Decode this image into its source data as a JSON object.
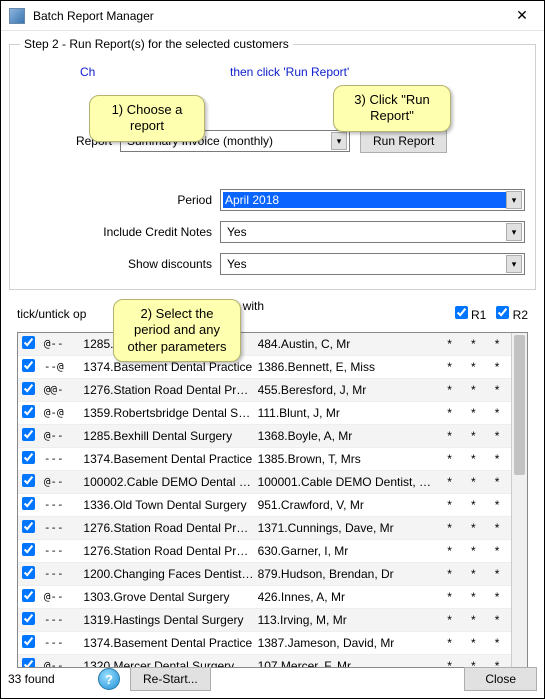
{
  "window": {
    "title": "Batch Report Manager",
    "close_glyph": "✕"
  },
  "step": {
    "legend": "Step 2 - Run Report(s) for the selected customers",
    "hint_full": "Choose a report, then click 'Run Report'",
    "hint_left": "Ch",
    "hint_right": "then click 'Run Report'"
  },
  "callouts": {
    "c1": "1) Choose a report",
    "c2": "2) Select the period and any other parameters",
    "c3": "3) Click \"Run Report\""
  },
  "form": {
    "report_label": "Report",
    "report_value": "Summary Invoice (monthly)",
    "run_button": "Run Report",
    "period_label": "Period",
    "period_value": "April 2018",
    "credit_label": "Include Credit Notes",
    "credit_value": "Yes",
    "disc_label": "Show discounts",
    "disc_value": "Yes"
  },
  "mid": {
    "tick_label": "tick/untick op",
    "include_label": "Include reports with no activity",
    "include_checked": false,
    "r1_label": "R1",
    "r1_checked": true,
    "r2_label": "R2",
    "r2_checked": true
  },
  "table": {
    "rows": [
      {
        "chk": true,
        "at": "@--",
        "p1": "1285.Bexhill Dental Surgery",
        "p2": "484.Austin, C, Mr",
        "s1": "*",
        "s2": "*",
        "s3": "*"
      },
      {
        "chk": true,
        "at": "--@",
        "p1": "1374.Basement Dental Practice",
        "p2": "1386.Bennett, E, Miss",
        "s1": "*",
        "s2": "*",
        "s3": "*"
      },
      {
        "chk": true,
        "at": "@@-",
        "p1": "1276.Station Road Dental Prac...",
        "p2": "455.Beresford, J, Mr",
        "s1": "*",
        "s2": "*",
        "s3": "*"
      },
      {
        "chk": true,
        "at": "@-@",
        "p1": "1359.Robertsbridge Dental Su...",
        "p2": "111.Blunt, J, Mr",
        "s1": "*",
        "s2": "*",
        "s3": "*"
      },
      {
        "chk": true,
        "at": "@--",
        "p1": "1285.Bexhill Dental Surgery",
        "p2": "1368.Boyle, A, Mr",
        "s1": "*",
        "s2": "*",
        "s3": "*"
      },
      {
        "chk": true,
        "at": "---",
        "p1": "1374.Basement Dental Practice",
        "p2": "1385.Brown, T, Mrs",
        "s1": "*",
        "s2": "*",
        "s3": "*"
      },
      {
        "chk": true,
        "at": "@--",
        "p1": "100002.Cable DEMO Dental Pr...",
        "p2": "100001.Cable DEMO Dentist, Chri...",
        "s1": "*",
        "s2": "*",
        "s3": "*"
      },
      {
        "chk": true,
        "at": "---",
        "p1": "1336.Old Town Dental Surgery",
        "p2": "951.Crawford, V, Mr",
        "s1": "*",
        "s2": "*",
        "s3": "*"
      },
      {
        "chk": true,
        "at": "---",
        "p1": "1276.Station Road Dental Prac...",
        "p2": "1371.Cunnings, Dave, Mr",
        "s1": "*",
        "s2": "*",
        "s3": "*"
      },
      {
        "chk": true,
        "at": "---",
        "p1": "1276.Station Road Dental Prac...",
        "p2": "630.Garner, I, Mr",
        "s1": "*",
        "s2": "*",
        "s3": "*"
      },
      {
        "chk": true,
        "at": "---",
        "p1": "1200.Changing Faces Dentistr...",
        "p2": "879.Hudson, Brendan, Dr",
        "s1": "*",
        "s2": "*",
        "s3": "*"
      },
      {
        "chk": true,
        "at": "@--",
        "p1": "1303.Grove Dental Surgery",
        "p2": "426.Innes, A, Mr",
        "s1": "*",
        "s2": "*",
        "s3": "*"
      },
      {
        "chk": true,
        "at": "---",
        "p1": "1319.Hastings Dental Surgery",
        "p2": "113.Irving, M, Mr",
        "s1": "*",
        "s2": "*",
        "s3": "*"
      },
      {
        "chk": true,
        "at": "---",
        "p1": "1374.Basement Dental Practice",
        "p2": "1387.Jameson, David, Mr",
        "s1": "*",
        "s2": "*",
        "s3": "*"
      },
      {
        "chk": true,
        "at": "@--",
        "p1": "1320.Mercer Dental Surgery",
        "p2": "107.Mercer, F, Mr",
        "s1": "*",
        "s2": "*",
        "s3": "*"
      }
    ]
  },
  "footer": {
    "found": "33  found",
    "restart": "Re-Start...",
    "close": "Close"
  },
  "colors": {
    "highlight_bg": "#0a64ff",
    "callout_bg": "#ffffb0",
    "hint_text": "#1020cc"
  }
}
